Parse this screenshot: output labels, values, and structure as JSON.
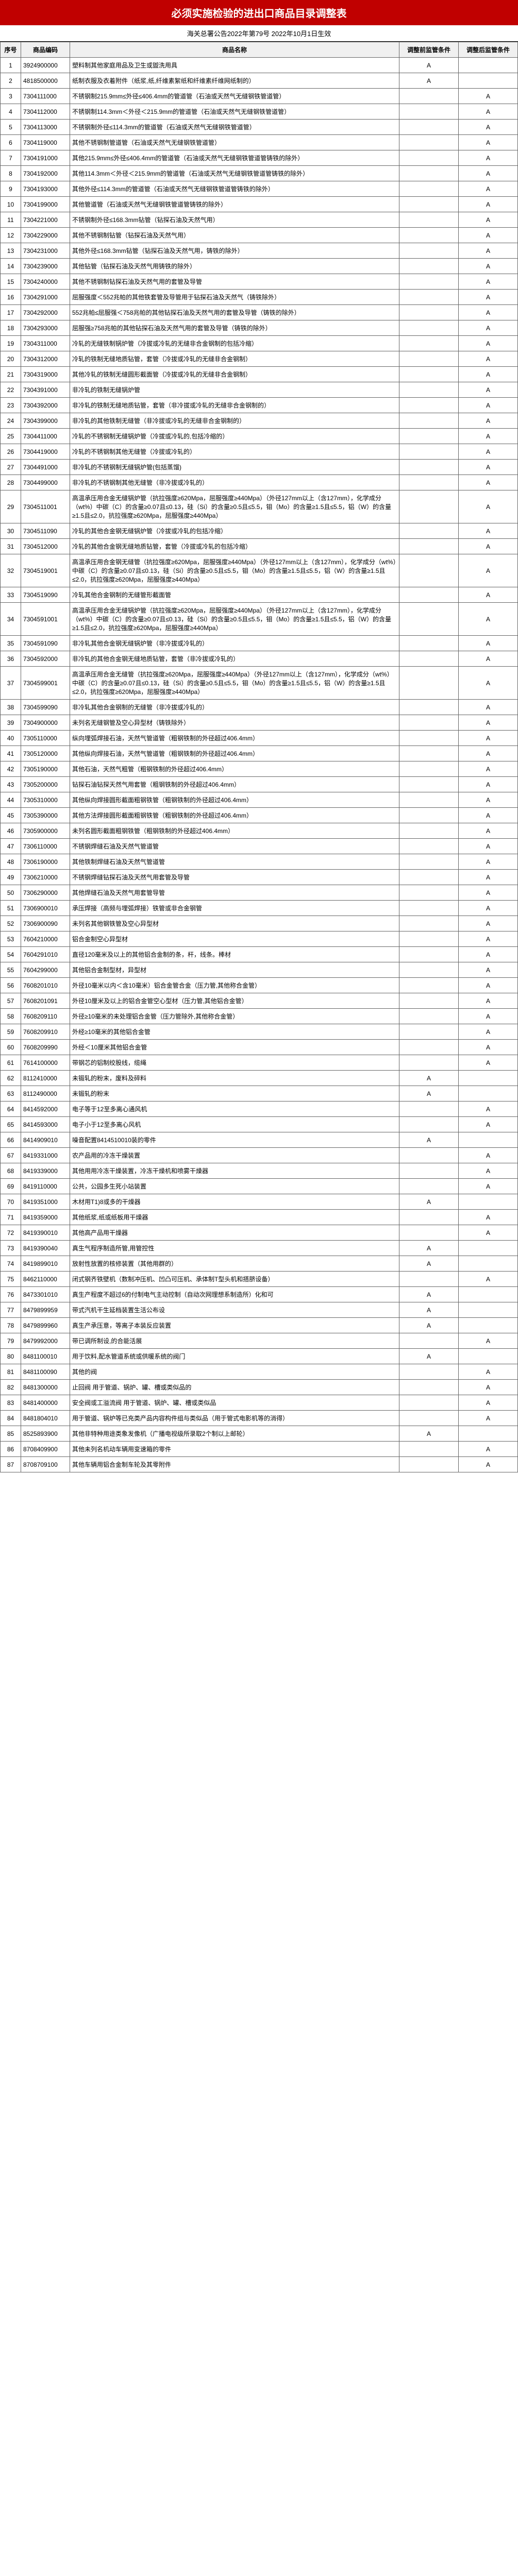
{
  "title": "必须实施检验的进出口商品目录调整表",
  "subtitle": "海关总署公告2022年第79号 2022年10月1日生效",
  "columns": [
    "序号",
    "商品编码",
    "商品名称",
    "调整前监管条件",
    "调整后监管条件"
  ],
  "rows": [
    {
      "seq": "1",
      "code": "3924900000",
      "name": "塑料制其他家庭用品及卫生或盥洗用具",
      "before": "A",
      "after": ""
    },
    {
      "seq": "2",
      "code": "4818500000",
      "name": "纸制衣服及衣着附件（纸浆,纸,纤维素絮纸和纤维素纤维网纸制的）",
      "before": "A",
      "after": ""
    },
    {
      "seq": "3",
      "code": "7304111000",
      "name": "不锈钢制215.9mm≤外径≤406.4mm的管道管（石油或天然气无缝钢铁管道管）",
      "before": "",
      "after": "A"
    },
    {
      "seq": "4",
      "code": "7304112000",
      "name": "不锈钢制114.3mm＜外径＜215.9mm的管道管（石油或天然气无缝钢铁管道管）",
      "before": "",
      "after": "A"
    },
    {
      "seq": "5",
      "code": "7304113000",
      "name": "不锈钢制外径≤114.3mm的管道管（石油或天然气无缝钢铁管道管）",
      "before": "",
      "after": "A"
    },
    {
      "seq": "6",
      "code": "7304119000",
      "name": "其他不锈钢制管道管（石油或天然气无缝钢铁管道管）",
      "before": "",
      "after": "A"
    },
    {
      "seq": "7",
      "code": "7304191000",
      "name": "其他215.9mm≤外径≤406.4mm的管道管（石油或天然气无缝钢铁管道管铸铁的除外）",
      "before": "",
      "after": "A"
    },
    {
      "seq": "8",
      "code": "7304192000",
      "name": "其他114.3mm＜外径＜215.9mm的管道管（石油或天然气无缝钢铁管道管铸铁的除外）",
      "before": "",
      "after": "A"
    },
    {
      "seq": "9",
      "code": "7304193000",
      "name": "其他外径≤114.3mm的管道管（石油或天然气无缝钢铁管道管铸铁的除外）",
      "before": "",
      "after": "A"
    },
    {
      "seq": "10",
      "code": "7304199000",
      "name": "其他管道管（石油或天然气无缝钢铁管道管铸铁的除外）",
      "before": "",
      "after": "A"
    },
    {
      "seq": "11",
      "code": "7304221000",
      "name": "不锈钢制外径≤168.3mm钻管（钻探石油及天然气用）",
      "before": "",
      "after": "A"
    },
    {
      "seq": "12",
      "code": "7304229000",
      "name": "其他不锈钢制钻管（钻探石油及天然气用）",
      "before": "",
      "after": "A"
    },
    {
      "seq": "13",
      "code": "7304231000",
      "name": "其他外径≤168.3mm钻管（钻探石油及天然气用，铸铁的除外）",
      "before": "",
      "after": "A"
    },
    {
      "seq": "14",
      "code": "7304239000",
      "name": "其他钻管（钻探石油及天然气用铸铁的除外）",
      "before": "",
      "after": "A"
    },
    {
      "seq": "15",
      "code": "7304240000",
      "name": "其他不锈钢制钻探石油及天然气用的套管及导管",
      "before": "",
      "after": "A"
    },
    {
      "seq": "16",
      "code": "7304291000",
      "name": "屈服强度＜552兆帕的其他铁套管及导管用于钻探石油及天然气（铸铁除外）",
      "before": "",
      "after": "A"
    },
    {
      "seq": "17",
      "code": "7304292000",
      "name": "552兆帕≤屈服强＜758兆帕的其他钻探石油及天然气用的套管及导管（铸铁的除外）",
      "before": "",
      "after": "A"
    },
    {
      "seq": "18",
      "code": "7304293000",
      "name": "屈服强≥758兆帕的其他钻探石油及天然气用的套管及导管（铸铁的除外）",
      "before": "",
      "after": "A"
    },
    {
      "seq": "19",
      "code": "7304311000",
      "name": "冷轧的无缝铁制锅炉管（冷拔或冷轧的无缝非合金钢制的包括冷缩）",
      "before": "",
      "after": "A"
    },
    {
      "seq": "20",
      "code": "7304312000",
      "name": "冷轧的铁制无缝地质钻管，套管（冷拔或冷轧的无缝非合金钢制）",
      "before": "",
      "after": "A"
    },
    {
      "seq": "21",
      "code": "7304319000",
      "name": "其他冷轧的铁制无缝圆形截面管（冷拔或冷轧的无缝非合金钢制）",
      "before": "",
      "after": "A"
    },
    {
      "seq": "22",
      "code": "7304391000",
      "name": "非冷轧的铁制无缝锅炉管",
      "before": "",
      "after": "A"
    },
    {
      "seq": "23",
      "code": "7304392000",
      "name": "非冷轧的铁制无缝地质钻管，套管（非冷拔或冷轧的无缝非合金钢制的）",
      "before": "",
      "after": "A"
    },
    {
      "seq": "24",
      "code": "7304399000",
      "name": "非冷轧的其他铁制无缝管（非冷拔或冷轧的无缝非合金钢制的）",
      "before": "",
      "after": "A"
    },
    {
      "seq": "25",
      "code": "7304411000",
      "name": "冷轧的不锈钢制无缝锅炉管（冷拔或冷轧的,包括冷缩的）",
      "before": "",
      "after": "A"
    },
    {
      "seq": "26",
      "code": "7304419000",
      "name": "冷轧的不锈钢制其他无缝管（冷拔或冷轧的）",
      "before": "",
      "after": "A"
    },
    {
      "seq": "27",
      "code": "7304491000",
      "name": "非冷轧的不锈钢制无缝锅炉管(包括蒸馏)",
      "before": "",
      "after": "A"
    },
    {
      "seq": "28",
      "code": "7304499000",
      "name": "非冷轧的不锈钢制其他无缝管（非冷拔或冷轧的）",
      "before": "",
      "after": "A"
    },
    {
      "seq": "29",
      "code": "7304511001",
      "name": "高温承压用合金无缝锅炉管（抗拉强度≥620Mpa，屈服强度≥440Mpa）（外径127mm以上（含127mm），化学成分（wt%）中碳（C）的含量≥0.07且≤0.13，硅（Si）的含量≥0.5且≤5.5，钼（Mo）的含量≥1.5且≤5.5，铝（W）的含量≥1.5且≤2.0，抗拉强度≥620Mpa，屈服强度≥440Mpa）",
      "before": "",
      "after": "A"
    },
    {
      "seq": "30",
      "code": "7304511090",
      "name": "冷轧的其他合金钢无缝锅炉管（冷拔或冷轧的包括冷缩）",
      "before": "",
      "after": "A"
    },
    {
      "seq": "31",
      "code": "7304512000",
      "name": "冷轧的其他合金钢无缝地质钻管，套管（冷拔或冷轧的包括冷缩）",
      "before": "",
      "after": "A"
    },
    {
      "seq": "32",
      "code": "7304519001",
      "name": "高温承压用合金钢无缝管（抗拉强度≥620Mpa，屈服强度≥440Mpa）（外径127mm以上（含127mm），化学成分（wt%）中碳（C）的含量≥0.07且≤0.13，硅（Si）的含量≥0.5且≤5.5，钼（Mo）的含量≥1.5且≤5.5，铝（W）的含量≥1.5且≤2.0，抗拉强度≥620Mpa，屈服强度≥440Mpa）",
      "before": "",
      "after": "A"
    },
    {
      "seq": "33",
      "code": "7304519090",
      "name": "冷轧其他合金钢制的无缝管形截面管",
      "before": "",
      "after": "A"
    },
    {
      "seq": "34",
      "code": "7304591001",
      "name": "高温承压用合金无缝锅炉管（抗拉强度≥620Mpa，屈服强度≥440Mpa）（外径127mm以上（含127mm），化学成分（wt%）中碳（C）的含量≥0.07且≤0.13，硅（Si）的含量≥0.5且≤5.5，钼（Mo）的含量≥1.5且≤5.5，铝（W）的含量≥1.5且≤2.0，抗拉强度≥620Mpa，屈服强度≥440Mpa）",
      "before": "",
      "after": "A"
    },
    {
      "seq": "35",
      "code": "7304591090",
      "name": "非冷轧其他合金钢无缝锅炉管（非冷拔或冷轧的）",
      "before": "",
      "after": "A"
    },
    {
      "seq": "36",
      "code": "7304592000",
      "name": "非冷轧的其他合金钢无缝地质钻管，套管（非冷拔或冷轧的）",
      "before": "",
      "after": "A"
    },
    {
      "seq": "37",
      "code": "7304599001",
      "name": "高温承压用合金无缝管（抗拉强度≥620Mpa，屈服强度≥440Mpa）（外径127mm以上（含127mm），化学成分（wt%）中碳（C）的含量≥0.07且≤0.13，硅（Si）的含量≥0.5且≤5.5，钼（Mo）的含量≥1.5且≤5.5，铝（W）的含量≥1.5且≤2.0，抗拉强度≥620Mpa，屈服强度≥440Mpa）",
      "before": "",
      "after": "A"
    },
    {
      "seq": "38",
      "code": "7304599090",
      "name": "非冷轧其他合金钢制的无缝管（非冷拔或冷轧的）",
      "before": "",
      "after": "A"
    },
    {
      "seq": "39",
      "code": "7304900000",
      "name": "未列名无缝钢管及空心异型材（铸铁除外）",
      "before": "",
      "after": "A"
    },
    {
      "seq": "40",
      "code": "7305110000",
      "name": "纵向埋弧焊接石油，天然气管道管（粗钢铁制的外径超过406.4mm）",
      "before": "",
      "after": "A"
    },
    {
      "seq": "41",
      "code": "7305120000",
      "name": "其他纵向焊接石油，天然气管道管（粗钢铁制的外径超过406.4mm）",
      "before": "",
      "after": "A"
    },
    {
      "seq": "42",
      "code": "7305190000",
      "name": "其他石油，天然气粗管（粗钢铁制的外径超过406.4mm）",
      "before": "",
      "after": "A"
    },
    {
      "seq": "43",
      "code": "7305200000",
      "name": "钻探石油钻探天然气用套管（粗钢铁制的外径超过406.4mm）",
      "before": "",
      "after": "A"
    },
    {
      "seq": "44",
      "code": "7305310000",
      "name": "其他纵向焊接圆形截面粗钢铁管（粗钢铁制的外径超过406.4mm）",
      "before": "",
      "after": "A"
    },
    {
      "seq": "45",
      "code": "7305390000",
      "name": "其他方法焊接圆形截面粗钢铁管（粗钢铁制的外径超过406.4mm）",
      "before": "",
      "after": "A"
    },
    {
      "seq": "46",
      "code": "7305900000",
      "name": "未列名圆形截面粗钢铁管（粗钢铁制的外径超过406.4mm）",
      "before": "",
      "after": "A"
    },
    {
      "seq": "47",
      "code": "7306110000",
      "name": "不锈钢焊缝石油及天然气管道管",
      "before": "",
      "after": "A"
    },
    {
      "seq": "48",
      "code": "7306190000",
      "name": "其他铁制焊缝石油及天然气管道管",
      "before": "",
      "after": "A"
    },
    {
      "seq": "49",
      "code": "7306210000",
      "name": "不锈钢焊缝钻探石油及天然气用套管及导管",
      "before": "",
      "after": "A"
    },
    {
      "seq": "50",
      "code": "7306290000",
      "name": "其他焊缝石油及天然气用套管导管",
      "before": "",
      "after": "A"
    },
    {
      "seq": "51",
      "code": "7306900010",
      "name": "承压焊接（高频与埋弧焊接）铁管或非合金钢管",
      "before": "",
      "after": "A"
    },
    {
      "seq": "52",
      "code": "7306900090",
      "name": "未列名其他钢铁管及空心异型材",
      "before": "",
      "after": "A"
    },
    {
      "seq": "53",
      "code": "7604210000",
      "name": "铝合金制空心异型材",
      "before": "",
      "after": "A"
    },
    {
      "seq": "54",
      "code": "7604291010",
      "name": "直径120毫米及以上的其他铝合金制的条，杆，线条。棒材",
      "before": "",
      "after": "A"
    },
    {
      "seq": "55",
      "code": "7604299000",
      "name": "其他铝合金制型材，异型材",
      "before": "",
      "after": "A"
    },
    {
      "seq": "56",
      "code": "7608201010",
      "name": "外径10毫米以内＜含10毫米）铝合金管合金（压力管,其他称合金管）",
      "before": "",
      "after": "A"
    },
    {
      "seq": "57",
      "code": "7608201091",
      "name": "外径10厘米及以上的铝合金管空心型材（压力管,其他铝合金管）",
      "before": "",
      "after": "A"
    },
    {
      "seq": "58",
      "code": "7608209110",
      "name": "外径≥10毫米的未处理铝合金管（压力管除外,其他称合金管）",
      "before": "",
      "after": "A"
    },
    {
      "seq": "59",
      "code": "7608209910",
      "name": "外经≥10毫米的其他铝合金管",
      "before": "",
      "after": "A"
    },
    {
      "seq": "60",
      "code": "7608209990",
      "name": "外经＜10厘米其他铝合金管",
      "before": "",
      "after": "A"
    },
    {
      "seq": "61",
      "code": "7614100000",
      "name": "带钢芯的铝制绞股线，缆绳",
      "before": "",
      "after": "A"
    },
    {
      "seq": "62",
      "code": "8112410000",
      "name": "未锻轧的粉末，废料及碎料",
      "before": "A",
      "after": ""
    },
    {
      "seq": "63",
      "code": "8112490000",
      "name": "未锻轧的粉末",
      "before": "A",
      "after": ""
    },
    {
      "seq": "64",
      "code": "8414592000",
      "name": "电子等于12至多离心通风机",
      "before": "",
      "after": "A"
    },
    {
      "seq": "65",
      "code": "8414593000",
      "name": "电子小于12至多离心风机",
      "before": "",
      "after": "A"
    },
    {
      "seq": "66",
      "code": "8414909010",
      "name": "噪音配置8414510010装的零件",
      "before": "A",
      "after": ""
    },
    {
      "seq": "67",
      "code": "8419331000",
      "name": "农产品用的冷冻干燥装置",
      "before": "",
      "after": "A"
    },
    {
      "seq": "68",
      "code": "8419339000",
      "name": "其他用用冷冻干燥装置，冷冻干燥机和喷雾干燥器",
      "before": "",
      "after": "A"
    },
    {
      "seq": "69",
      "code": "8419110000",
      "name": "公共，公园多生死小站装置",
      "before": "",
      "after": "A"
    },
    {
      "seq": "70",
      "code": "8419351000",
      "name": "木材用T1)8或多的干燥器",
      "before": "A",
      "after": ""
    },
    {
      "seq": "71",
      "code": "8419359000",
      "name": "其他纸浆,纸或纸板用干燥器",
      "before": "",
      "after": "A"
    },
    {
      "seq": "72",
      "code": "8419390010",
      "name": "其他高产品用干燥器",
      "before": "",
      "after": "A"
    },
    {
      "seq": "73",
      "code": "8419390040",
      "name": "真生气程序制造所管,用管控性",
      "before": "A",
      "after": ""
    },
    {
      "seq": "74",
      "code": "8419899010",
      "name": "放射性放置的核修装置（其他用群的）",
      "before": "A",
      "after": ""
    },
    {
      "seq": "75",
      "code": "8462110000",
      "name": "闭式钢齐铁壁机（数制冲压机、凹凸可压机、承体制T型头机和搭脐设备）",
      "before": "",
      "after": "A"
    },
    {
      "seq": "76",
      "code": "8473301010",
      "name": "真生产程度不超过6的付制电气主动控制（自动次网理想系制造所）化和可",
      "before": "A",
      "after": ""
    },
    {
      "seq": "77",
      "code": "8479899959",
      "name": "带式汽机干生延档装置生活公布设",
      "before": "A",
      "after": ""
    },
    {
      "seq": "78",
      "code": "8479899960",
      "name": "真生产承压意，等离子本装反应装置",
      "before": "A",
      "after": ""
    },
    {
      "seq": "79",
      "code": "8479992000",
      "name": "带已调所制设,的合能活展",
      "before": "",
      "after": "A"
    },
    {
      "seq": "80",
      "code": "8481100010",
      "name": "用于饮料,配水管道系统或供暖系统的阀门",
      "before": "A",
      "after": ""
    },
    {
      "seq": "81",
      "code": "8481100090",
      "name": "其他的阀",
      "before": "",
      "after": "A"
    },
    {
      "seq": "82",
      "code": "8481300000",
      "name": "止回阀 用于管道、锅炉、罐、槽或类似品的",
      "before": "",
      "after": "A"
    },
    {
      "seq": "83",
      "code": "8481400000",
      "name": "安全阀或工溢流阀 用于管道、锅炉、罐、槽或类似品",
      "before": "",
      "after": "A"
    },
    {
      "seq": "84",
      "code": "8481804010",
      "name": "用于管道、锅炉等已充类产品内容构件组与类似品（用于管式电影机等的消得）",
      "before": "",
      "after": "A"
    },
    {
      "seq": "85",
      "code": "8525893900",
      "name": "其他非特种用途类象发像机（广播电视级所录取2个制以上邮轮）",
      "before": "A",
      "after": ""
    },
    {
      "seq": "86",
      "code": "8708409900",
      "name": "其他未列名机动车辆用变速箱的零件",
      "before": "",
      "after": "A"
    },
    {
      "seq": "87",
      "code": "8708709100",
      "name": "其他车辆用铝合金制车轮及其零附件",
      "before": "",
      "after": "A"
    }
  ]
}
